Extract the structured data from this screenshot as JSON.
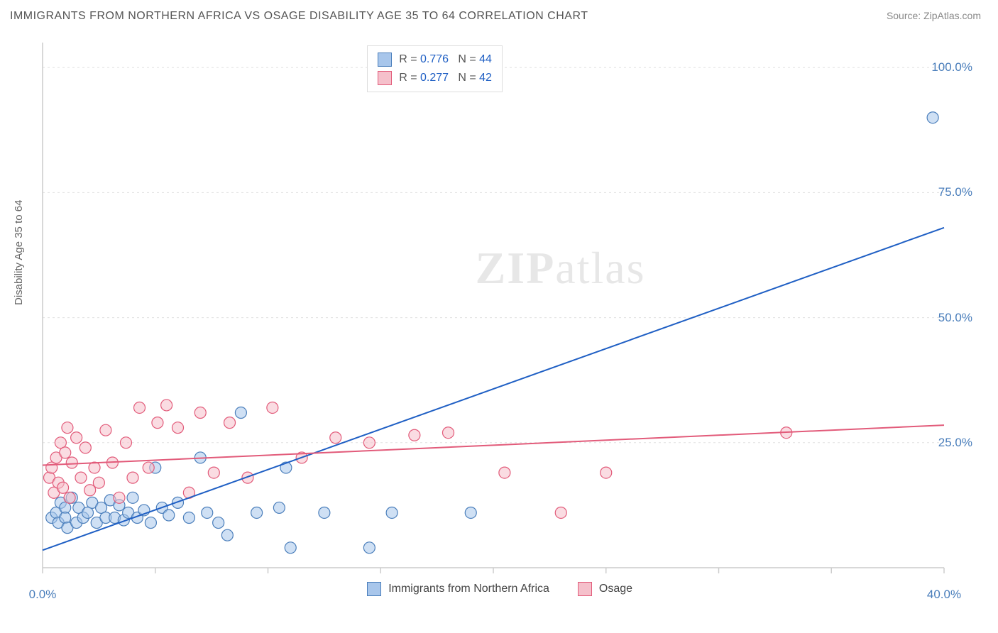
{
  "title": "IMMIGRANTS FROM NORTHERN AFRICA VS OSAGE DISABILITY AGE 35 TO 64 CORRELATION CHART",
  "source": "Source: ZipAtlas.com",
  "watermark": "ZIPatlas",
  "ylabel": "Disability Age 35 to 64",
  "chart": {
    "type": "scatter-with-regression",
    "xlim": [
      0,
      40
    ],
    "ylim": [
      0,
      105
    ],
    "xticks": [
      0,
      5,
      10,
      15,
      20,
      25,
      30,
      35,
      40
    ],
    "xtick_labels": {
      "0": "0.0%",
      "40": "40.0%"
    },
    "yticks": [
      25,
      50,
      75,
      100
    ],
    "ytick_labels": {
      "25": "25.0%",
      "50": "50.0%",
      "75": "75.0%",
      "100": "100.0%"
    },
    "grid_color": "#e0e0e0",
    "axis_color": "#cccccc",
    "background_color": "#ffffff",
    "tick_label_color": "#4a7ebb",
    "marker_radius": 8,
    "marker_stroke_width": 1.2,
    "line_width": 2
  },
  "series": [
    {
      "name": "Immigrants from Northern Africa",
      "fill_color": "#a8c6eb",
      "stroke_color": "#4a7ebb",
      "line_color": "#1f5fc4",
      "r": 0.776,
      "n": 44,
      "regression": {
        "x1": 0,
        "y1": 3.5,
        "x2": 40,
        "y2": 68
      },
      "points": [
        [
          0.4,
          10
        ],
        [
          0.6,
          11
        ],
        [
          0.7,
          9
        ],
        [
          0.8,
          13
        ],
        [
          1.0,
          12
        ],
        [
          1.0,
          10
        ],
        [
          1.1,
          8
        ],
        [
          1.3,
          14
        ],
        [
          1.5,
          9
        ],
        [
          1.6,
          12
        ],
        [
          1.8,
          10
        ],
        [
          2.0,
          11
        ],
        [
          2.2,
          13
        ],
        [
          2.4,
          9
        ],
        [
          2.6,
          12
        ],
        [
          2.8,
          10
        ],
        [
          3.0,
          13.5
        ],
        [
          3.2,
          10
        ],
        [
          3.4,
          12.5
        ],
        [
          3.6,
          9.5
        ],
        [
          3.8,
          11
        ],
        [
          4.0,
          14
        ],
        [
          4.2,
          10
        ],
        [
          4.5,
          11.5
        ],
        [
          4.8,
          9
        ],
        [
          5.0,
          20
        ],
        [
          5.3,
          12
        ],
        [
          5.6,
          10.5
        ],
        [
          6.0,
          13
        ],
        [
          6.5,
          10
        ],
        [
          7.0,
          22
        ],
        [
          7.3,
          11
        ],
        [
          7.8,
          9
        ],
        [
          8.2,
          6.5
        ],
        [
          8.8,
          31
        ],
        [
          9.5,
          11
        ],
        [
          10.5,
          12
        ],
        [
          10.8,
          20
        ],
        [
          11,
          4
        ],
        [
          12.5,
          11
        ],
        [
          14.5,
          4
        ],
        [
          15.5,
          11
        ],
        [
          19,
          11
        ],
        [
          39.5,
          90
        ]
      ]
    },
    {
      "name": "Osage",
      "fill_color": "#f5c0cb",
      "stroke_color": "#e25b7a",
      "line_color": "#e25b7a",
      "r": 0.277,
      "n": 42,
      "regression": {
        "x1": 0,
        "y1": 20.5,
        "x2": 40,
        "y2": 28.5
      },
      "points": [
        [
          0.3,
          18
        ],
        [
          0.4,
          20
        ],
        [
          0.5,
          15
        ],
        [
          0.6,
          22
        ],
        [
          0.7,
          17
        ],
        [
          0.8,
          25
        ],
        [
          0.9,
          16
        ],
        [
          1.0,
          23
        ],
        [
          1.1,
          28
        ],
        [
          1.2,
          14
        ],
        [
          1.3,
          21
        ],
        [
          1.5,
          26
        ],
        [
          1.7,
          18
        ],
        [
          1.9,
          24
        ],
        [
          2.1,
          15.5
        ],
        [
          2.3,
          20
        ],
        [
          2.5,
          17
        ],
        [
          2.8,
          27.5
        ],
        [
          3.1,
          21
        ],
        [
          3.4,
          14
        ],
        [
          3.7,
          25
        ],
        [
          4.0,
          18
        ],
        [
          4.3,
          32
        ],
        [
          4.7,
          20
        ],
        [
          5.1,
          29
        ],
        [
          5.5,
          32.5
        ],
        [
          6.0,
          28
        ],
        [
          6.5,
          15
        ],
        [
          7.0,
          31
        ],
        [
          7.6,
          19
        ],
        [
          8.3,
          29
        ],
        [
          9.1,
          18
        ],
        [
          10.2,
          32
        ],
        [
          11.5,
          22
        ],
        [
          13,
          26
        ],
        [
          14.5,
          25
        ],
        [
          16.5,
          26.5
        ],
        [
          18,
          27
        ],
        [
          20.5,
          19
        ],
        [
          23,
          11
        ],
        [
          25,
          19
        ],
        [
          33,
          27
        ]
      ]
    }
  ],
  "legend_top": {
    "label_r": "R =",
    "label_n": "N =",
    "value_color": "#1f5fc4",
    "text_color": "#555555"
  },
  "legend_bottom": {
    "items": [
      "Immigrants from Northern Africa",
      "Osage"
    ]
  }
}
